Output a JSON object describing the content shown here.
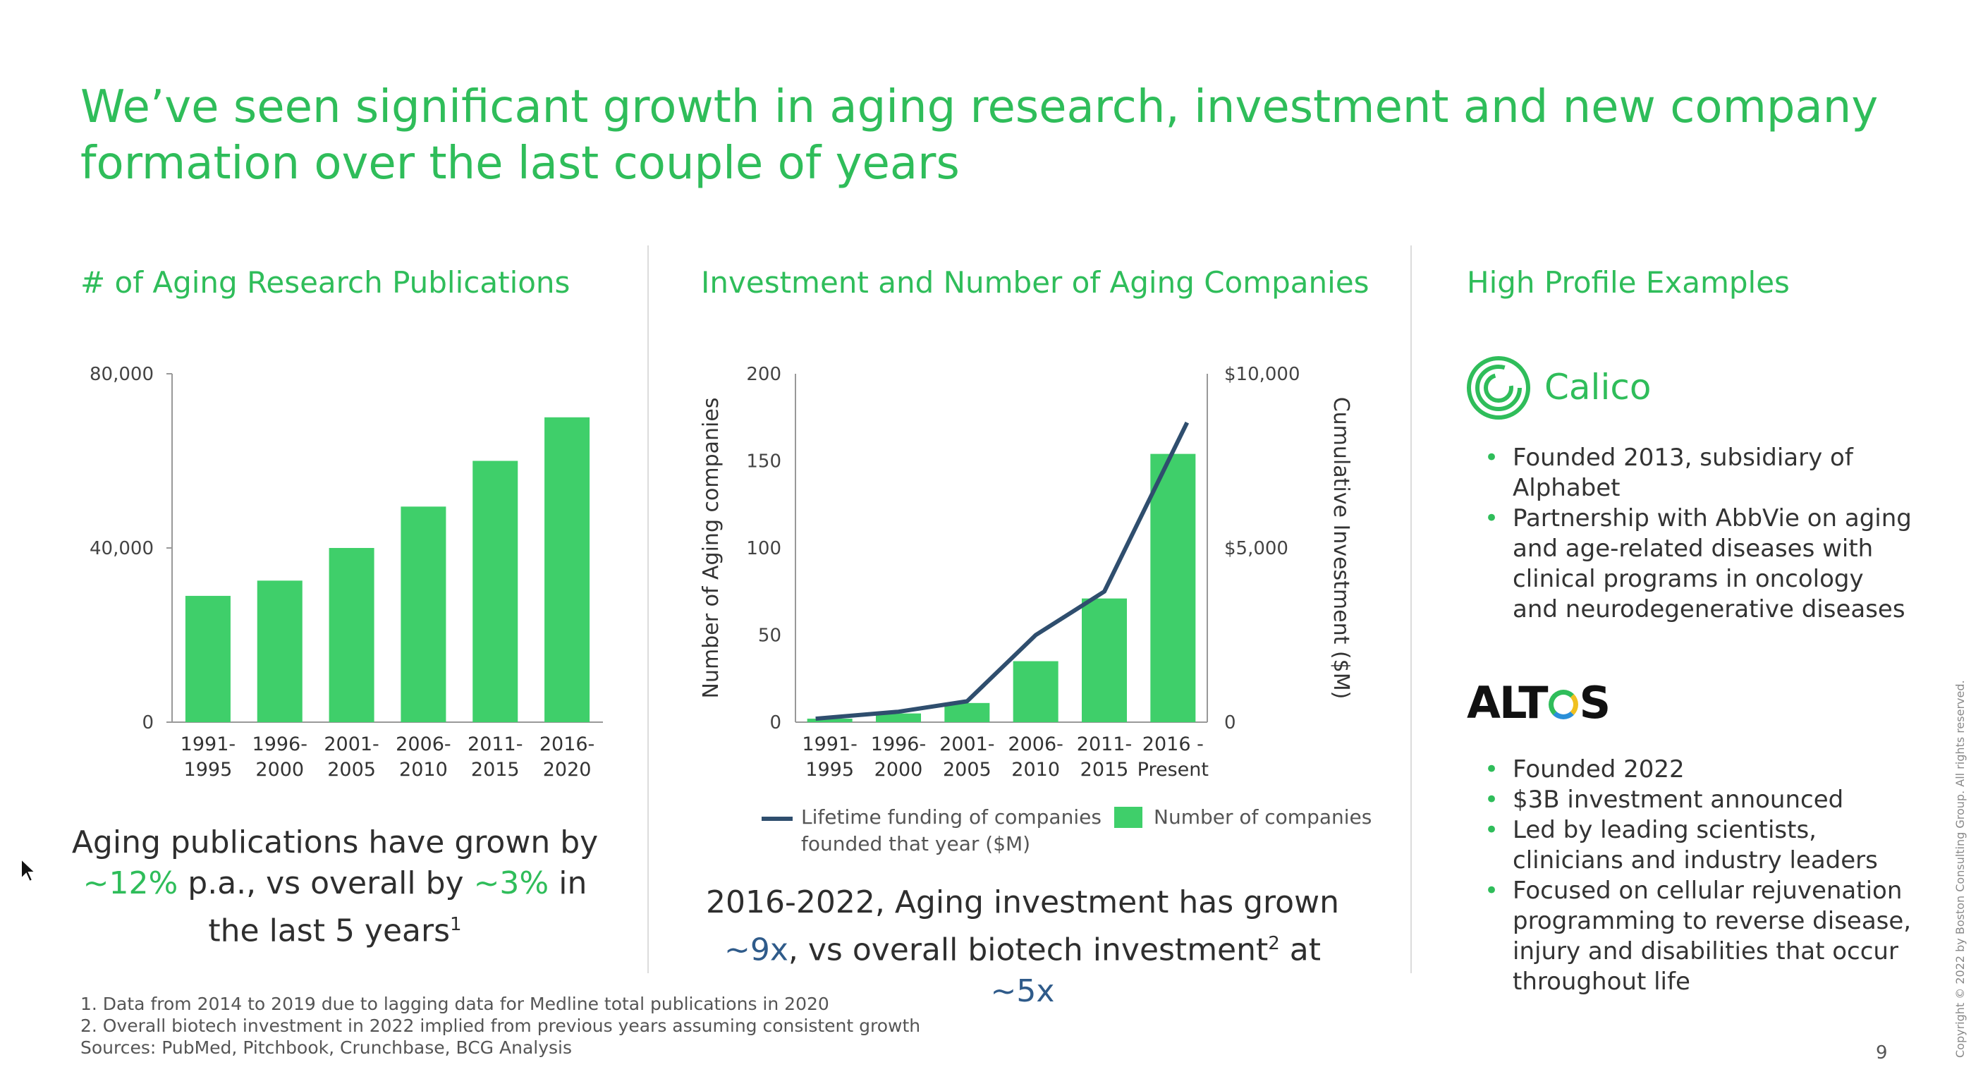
{
  "title": "We’ve seen significant growth in aging research, investment and new company formation over the last couple of years",
  "sections": {
    "publications_title": "# of Aging Research Publications",
    "investment_title": "Investment and Number of Aging Companies",
    "examples_title": "High Profile Examples"
  },
  "chart_data": [
    {
      "type": "bar",
      "title": "# of Aging Research Publications",
      "categories": [
        [
          "1991-",
          "1995"
        ],
        [
          "1996-",
          "2000"
        ],
        [
          "2001-",
          "2005"
        ],
        [
          "2006-",
          "2010"
        ],
        [
          "2011-",
          "2015"
        ],
        [
          "2016-",
          "2020"
        ]
      ],
      "values": [
        29000,
        32500,
        40000,
        49500,
        60000,
        70000
      ],
      "ylim": [
        0,
        80000
      ],
      "y_ticks": [
        "80,000",
        "40,000",
        "0"
      ],
      "y_tick_values": [
        80000,
        40000,
        0
      ],
      "bar_color": "#3fcf6a"
    },
    {
      "type": "bar",
      "title": "Investment and Number of Aging Companies",
      "categories": [
        [
          "1991-",
          "1995"
        ],
        [
          "1996-",
          "2000"
        ],
        [
          "2001-",
          "2005"
        ],
        [
          "2006-",
          "2010"
        ],
        [
          "2011-",
          "2015"
        ],
        [
          "2016 -",
          "Present"
        ]
      ],
      "series": [
        {
          "name": "Number of companies",
          "type": "bar",
          "values": [
            2,
            5,
            11,
            35,
            71,
            154
          ],
          "color": "#3fcf6a"
        },
        {
          "name": "Lifetime funding of companies founded that year ($M)",
          "type": "line",
          "values": [
            100,
            300,
            600,
            2500,
            3750,
            8600
          ],
          "color": "#2f4e6e"
        }
      ],
      "ylabel": "Number of Aging companies",
      "y2label": "Cumulative Investment ($M)",
      "ylim": [
        0,
        200
      ],
      "y2lim": [
        0,
        10000
      ],
      "y_ticks": [
        "200",
        "150",
        "100",
        "50",
        "0"
      ],
      "y_tick_values": [
        200,
        150,
        100,
        50,
        0
      ],
      "y2_ticks": [
        "$10,000",
        "$5,000",
        "0"
      ],
      "y2_tick_values": [
        10000,
        5000,
        0
      ],
      "legend": {
        "line_label_1": "Lifetime funding of companies",
        "line_label_2": "founded that year ($M)",
        "bar_label": "Number of companies",
        "position": "bottom"
      }
    }
  ],
  "takeaways": {
    "publications": {
      "l1": "Aging publications have grown by",
      "l2_a": "~12%",
      "l2_b": " p.a., vs overall by ",
      "l2_c": "~3%",
      "l2_d": " in",
      "l3": "the last 5 years",
      "l3_sup": "1"
    },
    "investment": {
      "l1": "2016-2022, Aging investment has grown",
      "l2_a": "~9x",
      "l2_b": ", vs overall biotech investment",
      "l2_sup": "2",
      "l2_c": " at ",
      "l2_d": "~5x"
    }
  },
  "examples": {
    "calico": {
      "name": "Calico",
      "bullets": [
        "Founded 2013, subsidiary of Alphabet",
        "Partnership with AbbVie on aging and age-related diseases with clinical programs in oncology and neurodegenerative diseases"
      ]
    },
    "altos": {
      "name_a": "ALT",
      "name_b": "S",
      "bullets": [
        "Founded 2022",
        "$3B investment announced",
        "Led by leading scientists, clinicians and industry leaders",
        "Focused on cellular rejuvenation programming to reverse disease, injury and disabilities that occur throughout life"
      ]
    }
  },
  "footnotes": {
    "f1": "1. Data from 2014 to 2019 due to lagging data for Medline total publications in 2020",
    "f2": "2. Overall biotech investment in 2022 implied from previous years assuming consistent growth",
    "sources": "Sources: PubMed, Pitchbook, Crunchbase, BCG Analysis"
  },
  "page_number": "9",
  "copyright": "Copyright © 2022 by Boston Consulting Group. All rights reserved.",
  "colors": {
    "accent": "#2fbd5a",
    "bar": "#3fcf6a",
    "line": "#2f4e6e",
    "highlight_blue": "#2f5b8a"
  }
}
